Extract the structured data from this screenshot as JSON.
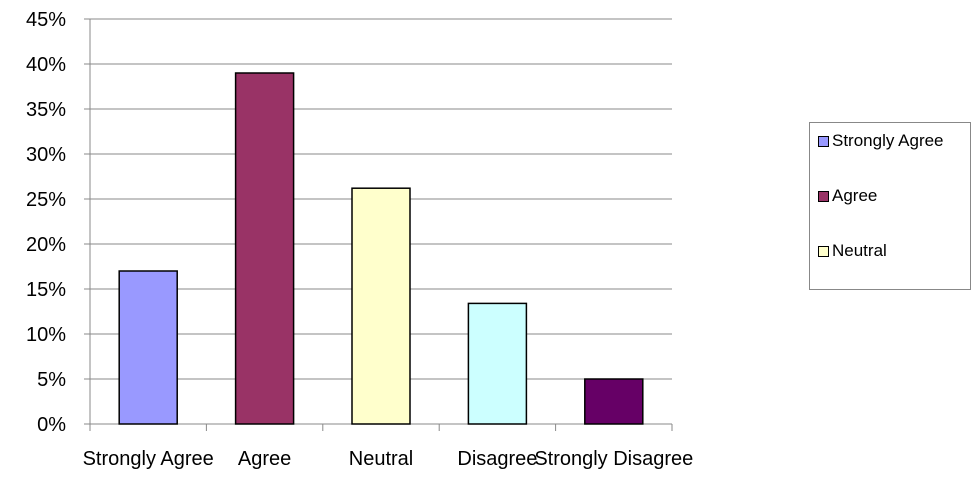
{
  "chart_data": {
    "type": "bar",
    "categories": [
      "Strongly Agree",
      "Agree",
      "Neutral",
      "Disagree",
      "Strongly Disagree"
    ],
    "values": [
      17,
      39,
      26.2,
      13.4,
      5
    ],
    "value_unit": "%",
    "ylim": [
      0,
      45
    ],
    "yticks": [
      "0%",
      "5%",
      "10%",
      "15%",
      "20%",
      "25%",
      "30%",
      "35%",
      "40%",
      "45%"
    ],
    "colors": [
      "#9999ff",
      "#993366",
      "#ffffcc",
      "#ccffff",
      "#660066"
    ],
    "grid": true,
    "legend": {
      "placement": "right",
      "items": [
        "Strongly Agree",
        "Agree",
        "Neutral"
      ]
    }
  }
}
